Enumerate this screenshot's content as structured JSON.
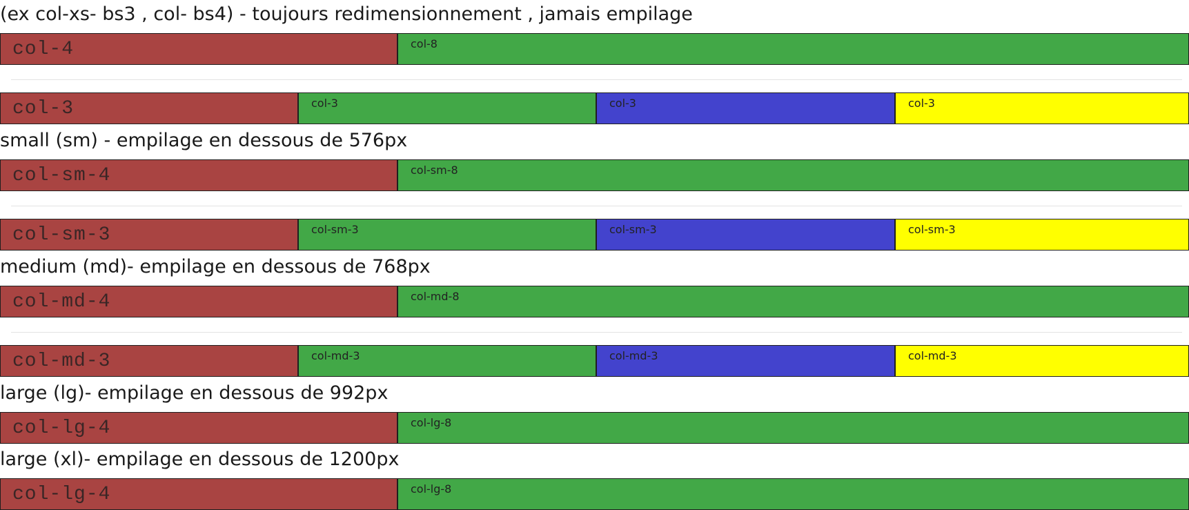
{
  "colors": {
    "red": "#a94442",
    "green": "#42a847",
    "blue": "#4343cd",
    "yellow": "#ffff00",
    "divider": "#e3e3e3"
  },
  "sections": {
    "xs": {
      "heading": "(ex col-xs- bs3 , col- bs4) - toujours redimensionnement , jamais empilage",
      "row1": [
        "col-4",
        "col-8"
      ],
      "row2": [
        "col-3",
        "col-3",
        "col-3",
        "col-3"
      ]
    },
    "sm": {
      "heading": "small (sm) - empilage en dessous de 576px",
      "row1": [
        "col-sm-4",
        "col-sm-8"
      ],
      "row2": [
        "col-sm-3",
        "col-sm-3",
        "col-sm-3",
        "col-sm-3"
      ]
    },
    "md": {
      "heading": "medium (md)- empilage en dessous de 768px",
      "row1": [
        "col-md-4",
        "col-md-8"
      ],
      "row2": [
        "col-md-3",
        "col-md-3",
        "col-md-3",
        "col-md-3"
      ]
    },
    "lg": {
      "heading": "large (lg)- empilage en dessous de 992px",
      "row1": [
        "col-lg-4",
        "col-lg-8"
      ]
    },
    "xl": {
      "heading": "large (xl)- empilage en dessous de 1200px",
      "row1": [
        "col-lg-4",
        "col-lg-8"
      ]
    }
  }
}
